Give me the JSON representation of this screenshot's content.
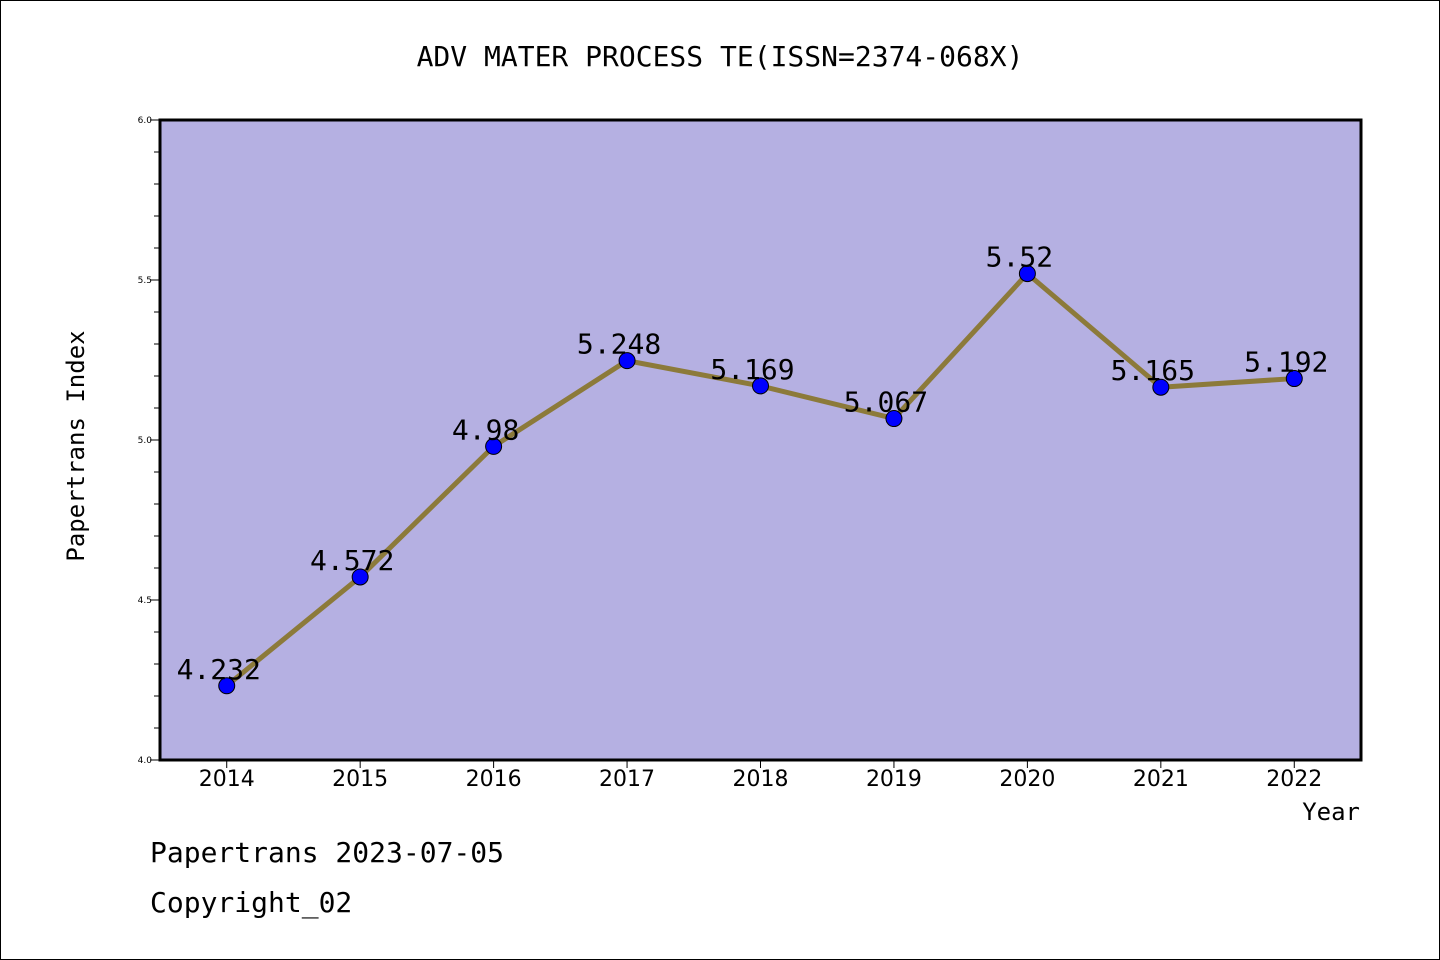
{
  "chart_data": {
    "type": "line",
    "title": "ADV MATER PROCESS TE(ISSN=2374-068X)",
    "xlabel": "Year",
    "ylabel": "Papertrans Index",
    "categories": [
      "2014",
      "2015",
      "2016",
      "2017",
      "2018",
      "2019",
      "2020",
      "2021",
      "2022"
    ],
    "series": [
      {
        "values": [
          4.232,
          4.572,
          4.98,
          5.248,
          5.169,
          5.067,
          5.52,
          5.165,
          5.192
        ],
        "labels": [
          "4.232",
          "4.572",
          "4.98",
          "5.248",
          "5.169",
          "5.067",
          "5.52",
          "5.165",
          "5.192"
        ]
      }
    ],
    "ylim": [
      4.0,
      6.0
    ],
    "yticks": [
      "4.0",
      "4.5",
      "5.0",
      "5.5",
      "6.0"
    ],
    "grid": false,
    "colors": {
      "plot_background": "#b5b0e2",
      "line": "#8c7a3a",
      "marker": "#0000ff"
    }
  },
  "footer": {
    "line1": "Papertrans 2023-07-05",
    "line2": "Copyright_02"
  }
}
